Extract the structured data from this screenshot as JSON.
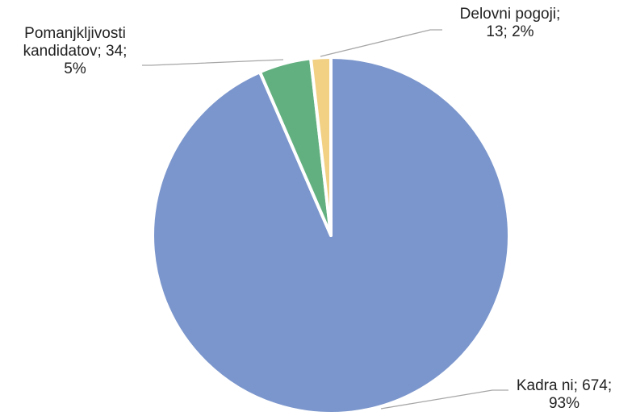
{
  "chart_data": {
    "type": "pie",
    "title": "",
    "slices": [
      {
        "category": "Kadra ni",
        "value": 674,
        "percent": "93%",
        "color": "#7B96CC",
        "label_lines": [
          "Kadra ni; 674;",
          "93%"
        ]
      },
      {
        "category": "Pomanjkljivosti kandidatov",
        "value": 34,
        "percent": "5%",
        "color": "#62B07F",
        "label_lines": [
          "Pomanjkljivosti",
          "kandidatov; 34;",
          "5%"
        ]
      },
      {
        "category": "Delovni pogoji",
        "value": 13,
        "percent": "2%",
        "color": "#F2D084",
        "label_lines": [
          "Delovni pogoji;",
          "13; 2%"
        ]
      }
    ],
    "start_angle_deg": 0,
    "direction": "counterclockwise-from-top",
    "slice_border_color": "#ffffff",
    "leader_line_color": "#A6A6A6",
    "legend": "none"
  }
}
